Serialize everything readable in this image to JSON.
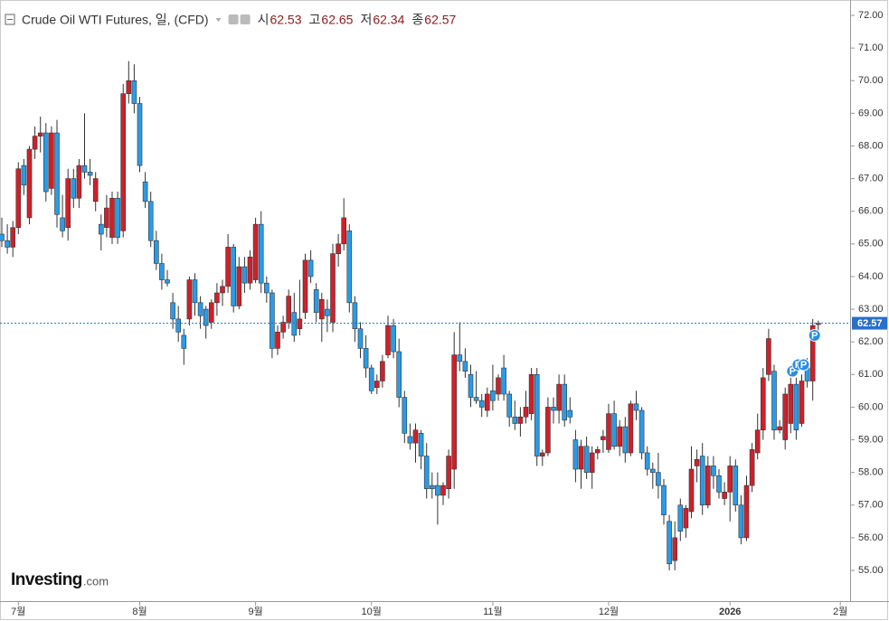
{
  "chart_data": {
    "type": "candlestick",
    "title": "Crude Oil WTI Futures, 일, (CFD)",
    "quote": [
      {
        "label": "시",
        "value": 62.53
      },
      {
        "label": "고",
        "value": 62.65
      },
      {
        "label": "저",
        "value": 62.34
      },
      {
        "label": "종",
        "value": 62.57
      }
    ],
    "last_price": 62.57,
    "up_color": "#d0202a",
    "down_color": "#2b9be8",
    "ylim": [
      54.5,
      72.4
    ],
    "yticks": [
      {
        "value": 55,
        "label": "55.00"
      },
      {
        "value": 56,
        "label": "56.00"
      },
      {
        "value": 57,
        "label": "57.00"
      },
      {
        "value": 58,
        "label": "58.00"
      },
      {
        "value": 59,
        "label": "59.00"
      },
      {
        "value": 60,
        "label": "60.00"
      },
      {
        "value": 61,
        "label": "61.00"
      },
      {
        "value": 62,
        "label": "62.00"
      },
      {
        "value": 63,
        "label": "63.00"
      },
      {
        "value": 64,
        "label": "64.00"
      },
      {
        "value": 65,
        "label": "65.00"
      },
      {
        "value": 66,
        "label": "66.00"
      },
      {
        "value": 67,
        "label": "67.00"
      },
      {
        "value": 68,
        "label": "68.00"
      },
      {
        "value": 69,
        "label": "69.00"
      },
      {
        "value": 70,
        "label": "70.00"
      },
      {
        "value": 71,
        "label": "71.00"
      },
      {
        "value": 72,
        "label": "72.00"
      }
    ],
    "xticks": [
      {
        "value": 3,
        "label": "7월"
      },
      {
        "value": 25,
        "label": "8월"
      },
      {
        "value": 46,
        "label": "9월"
      },
      {
        "value": 67,
        "label": "10월"
      },
      {
        "value": 89,
        "label": "11월"
      },
      {
        "value": 110,
        "label": "12월"
      },
      {
        "value": 132,
        "label": "2026"
      },
      {
        "value": 152,
        "label": "2월"
      }
    ],
    "events": [
      {
        "index": 143,
        "value": 61.1,
        "label": "P"
      },
      {
        "index": 144,
        "value": 61.3,
        "label": "P"
      },
      {
        "index": 145,
        "value": 61.3,
        "label": "P"
      },
      {
        "index": 147,
        "value": 62.2,
        "label": "P"
      }
    ],
    "logo": "Investing",
    "logo_suffix": ".com",
    "ohlc": [
      [
        65.3,
        65.8,
        64.9,
        65.1
      ],
      [
        65.1,
        65.6,
        64.7,
        64.9
      ],
      [
        64.9,
        65.7,
        64.6,
        65.5
      ],
      [
        65.5,
        67.5,
        65.3,
        67.3
      ],
      [
        67.4,
        67.6,
        66.5,
        66.8
      ],
      [
        65.8,
        68.0,
        65.6,
        67.9
      ],
      [
        67.9,
        68.6,
        67.6,
        68.3
      ],
      [
        68.3,
        68.9,
        67.8,
        68.4
      ],
      [
        68.4,
        68.7,
        66.3,
        66.6
      ],
      [
        66.7,
        68.6,
        66.5,
        68.4
      ],
      [
        68.4,
        68.8,
        65.5,
        65.9
      ],
      [
        65.8,
        66.5,
        65.2,
        65.4
      ],
      [
        65.5,
        67.3,
        65.1,
        67.0
      ],
      [
        67.0,
        67.3,
        66.1,
        66.4
      ],
      [
        66.4,
        67.6,
        66.1,
        67.4
      ],
      [
        67.4,
        69.0,
        67.0,
        67.2
      ],
      [
        67.2,
        67.6,
        66.8,
        67.1
      ],
      [
        66.3,
        67.2,
        66.0,
        67.0
      ],
      [
        65.6,
        65.9,
        64.8,
        65.3
      ],
      [
        65.5,
        66.5,
        65.2,
        66.1
      ],
      [
        65.2,
        66.6,
        65.0,
        66.4
      ],
      [
        66.4,
        66.6,
        65.0,
        65.2
      ],
      [
        65.4,
        69.9,
        65.2,
        69.6
      ],
      [
        69.6,
        70.6,
        69.3,
        70.0
      ],
      [
        70.0,
        70.5,
        69.0,
        69.3
      ],
      [
        69.3,
        69.5,
        67.2,
        67.4
      ],
      [
        66.9,
        67.2,
        66.1,
        66.3
      ],
      [
        66.3,
        66.6,
        64.9,
        65.1
      ],
      [
        65.1,
        65.4,
        64.2,
        64.4
      ],
      [
        64.4,
        64.7,
        63.6,
        63.9
      ],
      [
        63.9,
        64.2,
        63.7,
        63.8
      ],
      [
        63.2,
        63.5,
        62.4,
        62.7
      ],
      [
        62.7,
        63.1,
        62.0,
        62.3
      ],
      [
        62.2,
        62.4,
        61.3,
        61.8
      ],
      [
        62.7,
        64.0,
        62.5,
        63.9
      ],
      [
        63.9,
        64.1,
        62.8,
        63.2
      ],
      [
        63.2,
        63.4,
        62.4,
        62.8
      ],
      [
        63.0,
        63.1,
        62.1,
        62.5
      ],
      [
        62.6,
        63.3,
        62.4,
        63.2
      ],
      [
        63.2,
        63.8,
        62.8,
        63.5
      ],
      [
        63.5,
        63.9,
        63.1,
        63.7
      ],
      [
        63.7,
        65.3,
        63.5,
        64.9
      ],
      [
        64.9,
        65.0,
        62.9,
        63.1
      ],
      [
        63.1,
        64.6,
        63.0,
        64.3
      ],
      [
        64.3,
        64.6,
        63.5,
        63.8
      ],
      [
        63.8,
        64.8,
        63.6,
        64.6
      ],
      [
        63.9,
        65.8,
        63.8,
        65.6
      ],
      [
        65.6,
        66.0,
        63.5,
        63.8
      ],
      [
        63.8,
        64.0,
        63.2,
        63.5
      ],
      [
        63.5,
        63.6,
        61.5,
        61.8
      ],
      [
        61.8,
        62.5,
        61.6,
        62.3
      ],
      [
        62.3,
        62.8,
        62.1,
        62.6
      ],
      [
        62.6,
        63.6,
        62.4,
        63.4
      ],
      [
        62.9,
        63.5,
        62.0,
        62.2
      ],
      [
        62.4,
        63.9,
        62.2,
        62.7
      ],
      [
        62.9,
        64.7,
        62.7,
        64.5
      ],
      [
        64.5,
        64.8,
        63.8,
        64.0
      ],
      [
        63.6,
        63.8,
        62.6,
        62.9
      ],
      [
        62.7,
        63.5,
        62.0,
        63.3
      ],
      [
        63.0,
        63.3,
        62.3,
        62.8
      ],
      [
        62.6,
        65.0,
        62.3,
        64.7
      ],
      [
        64.7,
        65.3,
        64.3,
        65.0
      ],
      [
        65.0,
        66.4,
        64.8,
        65.8
      ],
      [
        65.4,
        65.6,
        62.9,
        63.2
      ],
      [
        63.2,
        63.4,
        62.0,
        62.4
      ],
      [
        62.4,
        62.6,
        61.5,
        61.8
      ],
      [
        61.8,
        62.2,
        60.9,
        61.2
      ],
      [
        61.2,
        61.3,
        60.4,
        60.5
      ],
      [
        60.6,
        61.0,
        60.4,
        60.8
      ],
      [
        60.8,
        61.6,
        60.6,
        61.4
      ],
      [
        61.6,
        62.8,
        61.5,
        62.5
      ],
      [
        62.5,
        62.7,
        61.5,
        61.7
      ],
      [
        61.7,
        62.1,
        60.0,
        60.3
      ],
      [
        60.3,
        60.5,
        58.9,
        59.2
      ],
      [
        59.1,
        59.5,
        58.7,
        58.9
      ],
      [
        58.9,
        59.5,
        58.3,
        59.3
      ],
      [
        59.2,
        59.3,
        58.1,
        58.5
      ],
      [
        58.5,
        58.9,
        57.2,
        57.5
      ],
      [
        57.6,
        58.0,
        57.2,
        57.5
      ],
      [
        57.6,
        58.0,
        56.4,
        57.3
      ],
      [
        57.3,
        57.7,
        57.0,
        57.6
      ],
      [
        57.5,
        58.7,
        57.2,
        58.5
      ],
      [
        58.1,
        62.3,
        57.5,
        61.6
      ],
      [
        61.6,
        62.6,
        61.1,
        61.4
      ],
      [
        61.4,
        61.8,
        60.9,
        61.1
      ],
      [
        61.0,
        61.3,
        60.0,
        60.3
      ],
      [
        60.3,
        61.1,
        60.1,
        60.2
      ],
      [
        60.2,
        60.4,
        59.7,
        60.0
      ],
      [
        59.9,
        60.6,
        59.7,
        60.4
      ],
      [
        60.5,
        61.3,
        59.9,
        60.2
      ],
      [
        60.4,
        61.0,
        60.2,
        60.9
      ],
      [
        61.2,
        61.6,
        60.2,
        60.4
      ],
      [
        60.4,
        60.5,
        59.4,
        59.7
      ],
      [
        59.7,
        60.2,
        59.3,
        59.5
      ],
      [
        59.5,
        60.0,
        59.1,
        59.7
      ],
      [
        59.7,
        60.5,
        59.5,
        60.0
      ],
      [
        59.8,
        61.2,
        59.6,
        61.0
      ],
      [
        61.0,
        61.2,
        58.2,
        58.5
      ],
      [
        58.5,
        58.7,
        58.2,
        58.6
      ],
      [
        58.6,
        60.3,
        58.5,
        60.0
      ],
      [
        60.0,
        60.3,
        59.5,
        59.9
      ],
      [
        59.9,
        61.0,
        59.5,
        60.7
      ],
      [
        60.7,
        61.0,
        59.4,
        59.6
      ],
      [
        59.9,
        60.3,
        59.5,
        59.7
      ],
      [
        59.0,
        59.3,
        57.7,
        58.1
      ],
      [
        58.1,
        59.0,
        57.5,
        58.8
      ],
      [
        58.8,
        59.1,
        57.8,
        58.0
      ],
      [
        58.0,
        58.8,
        57.5,
        58.6
      ],
      [
        58.6,
        58.8,
        58.4,
        58.7
      ],
      [
        59.0,
        59.3,
        58.6,
        59.1
      ],
      [
        58.7,
        60.1,
        58.6,
        59.8
      ],
      [
        59.8,
        60.2,
        58.7,
        58.8
      ],
      [
        58.8,
        59.6,
        58.5,
        59.4
      ],
      [
        59.4,
        59.7,
        58.3,
        58.6
      ],
      [
        58.6,
        60.2,
        58.5,
        60.1
      ],
      [
        60.1,
        60.5,
        59.6,
        59.9
      ],
      [
        59.9,
        60.0,
        58.4,
        58.6
      ],
      [
        58.6,
        58.8,
        57.9,
        58.1
      ],
      [
        58.1,
        58.3,
        57.5,
        58.0
      ],
      [
        58.0,
        58.6,
        57.2,
        57.6
      ],
      [
        57.6,
        57.8,
        56.4,
        56.7
      ],
      [
        56.5,
        56.7,
        55.0,
        55.2
      ],
      [
        55.3,
        56.5,
        55.0,
        56.0
      ],
      [
        57.0,
        57.2,
        55.9,
        56.2
      ],
      [
        56.3,
        57.0,
        56.0,
        56.9
      ],
      [
        56.8,
        58.8,
        56.6,
        58.1
      ],
      [
        58.2,
        58.7,
        57.7,
        58.4
      ],
      [
        58.5,
        58.9,
        56.7,
        57.0
      ],
      [
        57.0,
        58.5,
        56.9,
        58.2
      ],
      [
        58.2,
        58.5,
        57.5,
        57.9
      ],
      [
        57.9,
        58.1,
        57.2,
        57.4
      ],
      [
        57.2,
        57.7,
        57.0,
        57.4
      ],
      [
        57.4,
        58.5,
        56.5,
        58.2
      ],
      [
        58.2,
        58.4,
        56.8,
        57.0
      ],
      [
        57.0,
        57.3,
        55.8,
        56.0
      ],
      [
        56.0,
        57.9,
        55.9,
        57.6
      ],
      [
        57.6,
        58.9,
        57.4,
        58.7
      ],
      [
        58.6,
        59.8,
        58.4,
        59.3
      ],
      [
        59.3,
        61.2,
        59.0,
        60.9
      ],
      [
        61.0,
        62.4,
        60.8,
        62.1
      ],
      [
        61.1,
        61.3,
        59.0,
        59.3
      ],
      [
        59.3,
        59.6,
        59.2,
        59.4
      ],
      [
        59.0,
        60.6,
        58.7,
        60.4
      ],
      [
        59.5,
        60.9,
        59.2,
        60.7
      ],
      [
        60.7,
        60.9,
        59.0,
        59.3
      ],
      [
        59.5,
        61.0,
        59.4,
        60.8
      ],
      [
        61.2,
        61.5,
        60.6,
        60.8
      ],
      [
        60.8,
        62.7,
        60.2,
        62.5
      ],
      [
        62.53,
        62.65,
        62.34,
        62.57
      ]
    ]
  }
}
